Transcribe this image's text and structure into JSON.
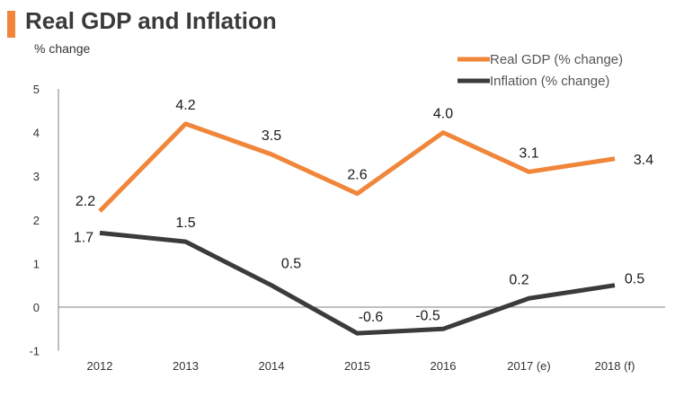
{
  "header": {
    "title": "Real GDP and Inflation",
    "subtitle": "% change",
    "accent_color": "#f0863a"
  },
  "chart_data": {
    "type": "line",
    "title": "Real GDP and Inflation",
    "ylabel": "% change",
    "xlabel": "",
    "categories": [
      "2012",
      "2013",
      "2014",
      "2015",
      "2016",
      "2017 (e)",
      "2018 (f)"
    ],
    "ylim": [
      -1,
      5
    ],
    "yticks": [
      -1,
      0,
      1,
      2,
      3,
      4,
      5
    ],
    "legend_position": "top-right",
    "grid": false,
    "series": [
      {
        "name": "Real GDP (% change)",
        "color": "#f0863a",
        "values": [
          2.2,
          4.2,
          3.5,
          2.6,
          4.0,
          3.1,
          3.4
        ],
        "labels": [
          "2.2",
          "4.2",
          "3.5",
          "2.6",
          "4.0",
          "3.1",
          "3.4"
        ]
      },
      {
        "name": "Inflation  (% change)",
        "color": "#3b3b3b",
        "values": [
          1.7,
          1.5,
          0.5,
          -0.6,
          -0.5,
          0.2,
          0.5
        ],
        "labels": [
          "1.7",
          "1.5",
          "0.5",
          "-0.6",
          "-0.5",
          "0.2",
          "0.5"
        ]
      }
    ]
  }
}
